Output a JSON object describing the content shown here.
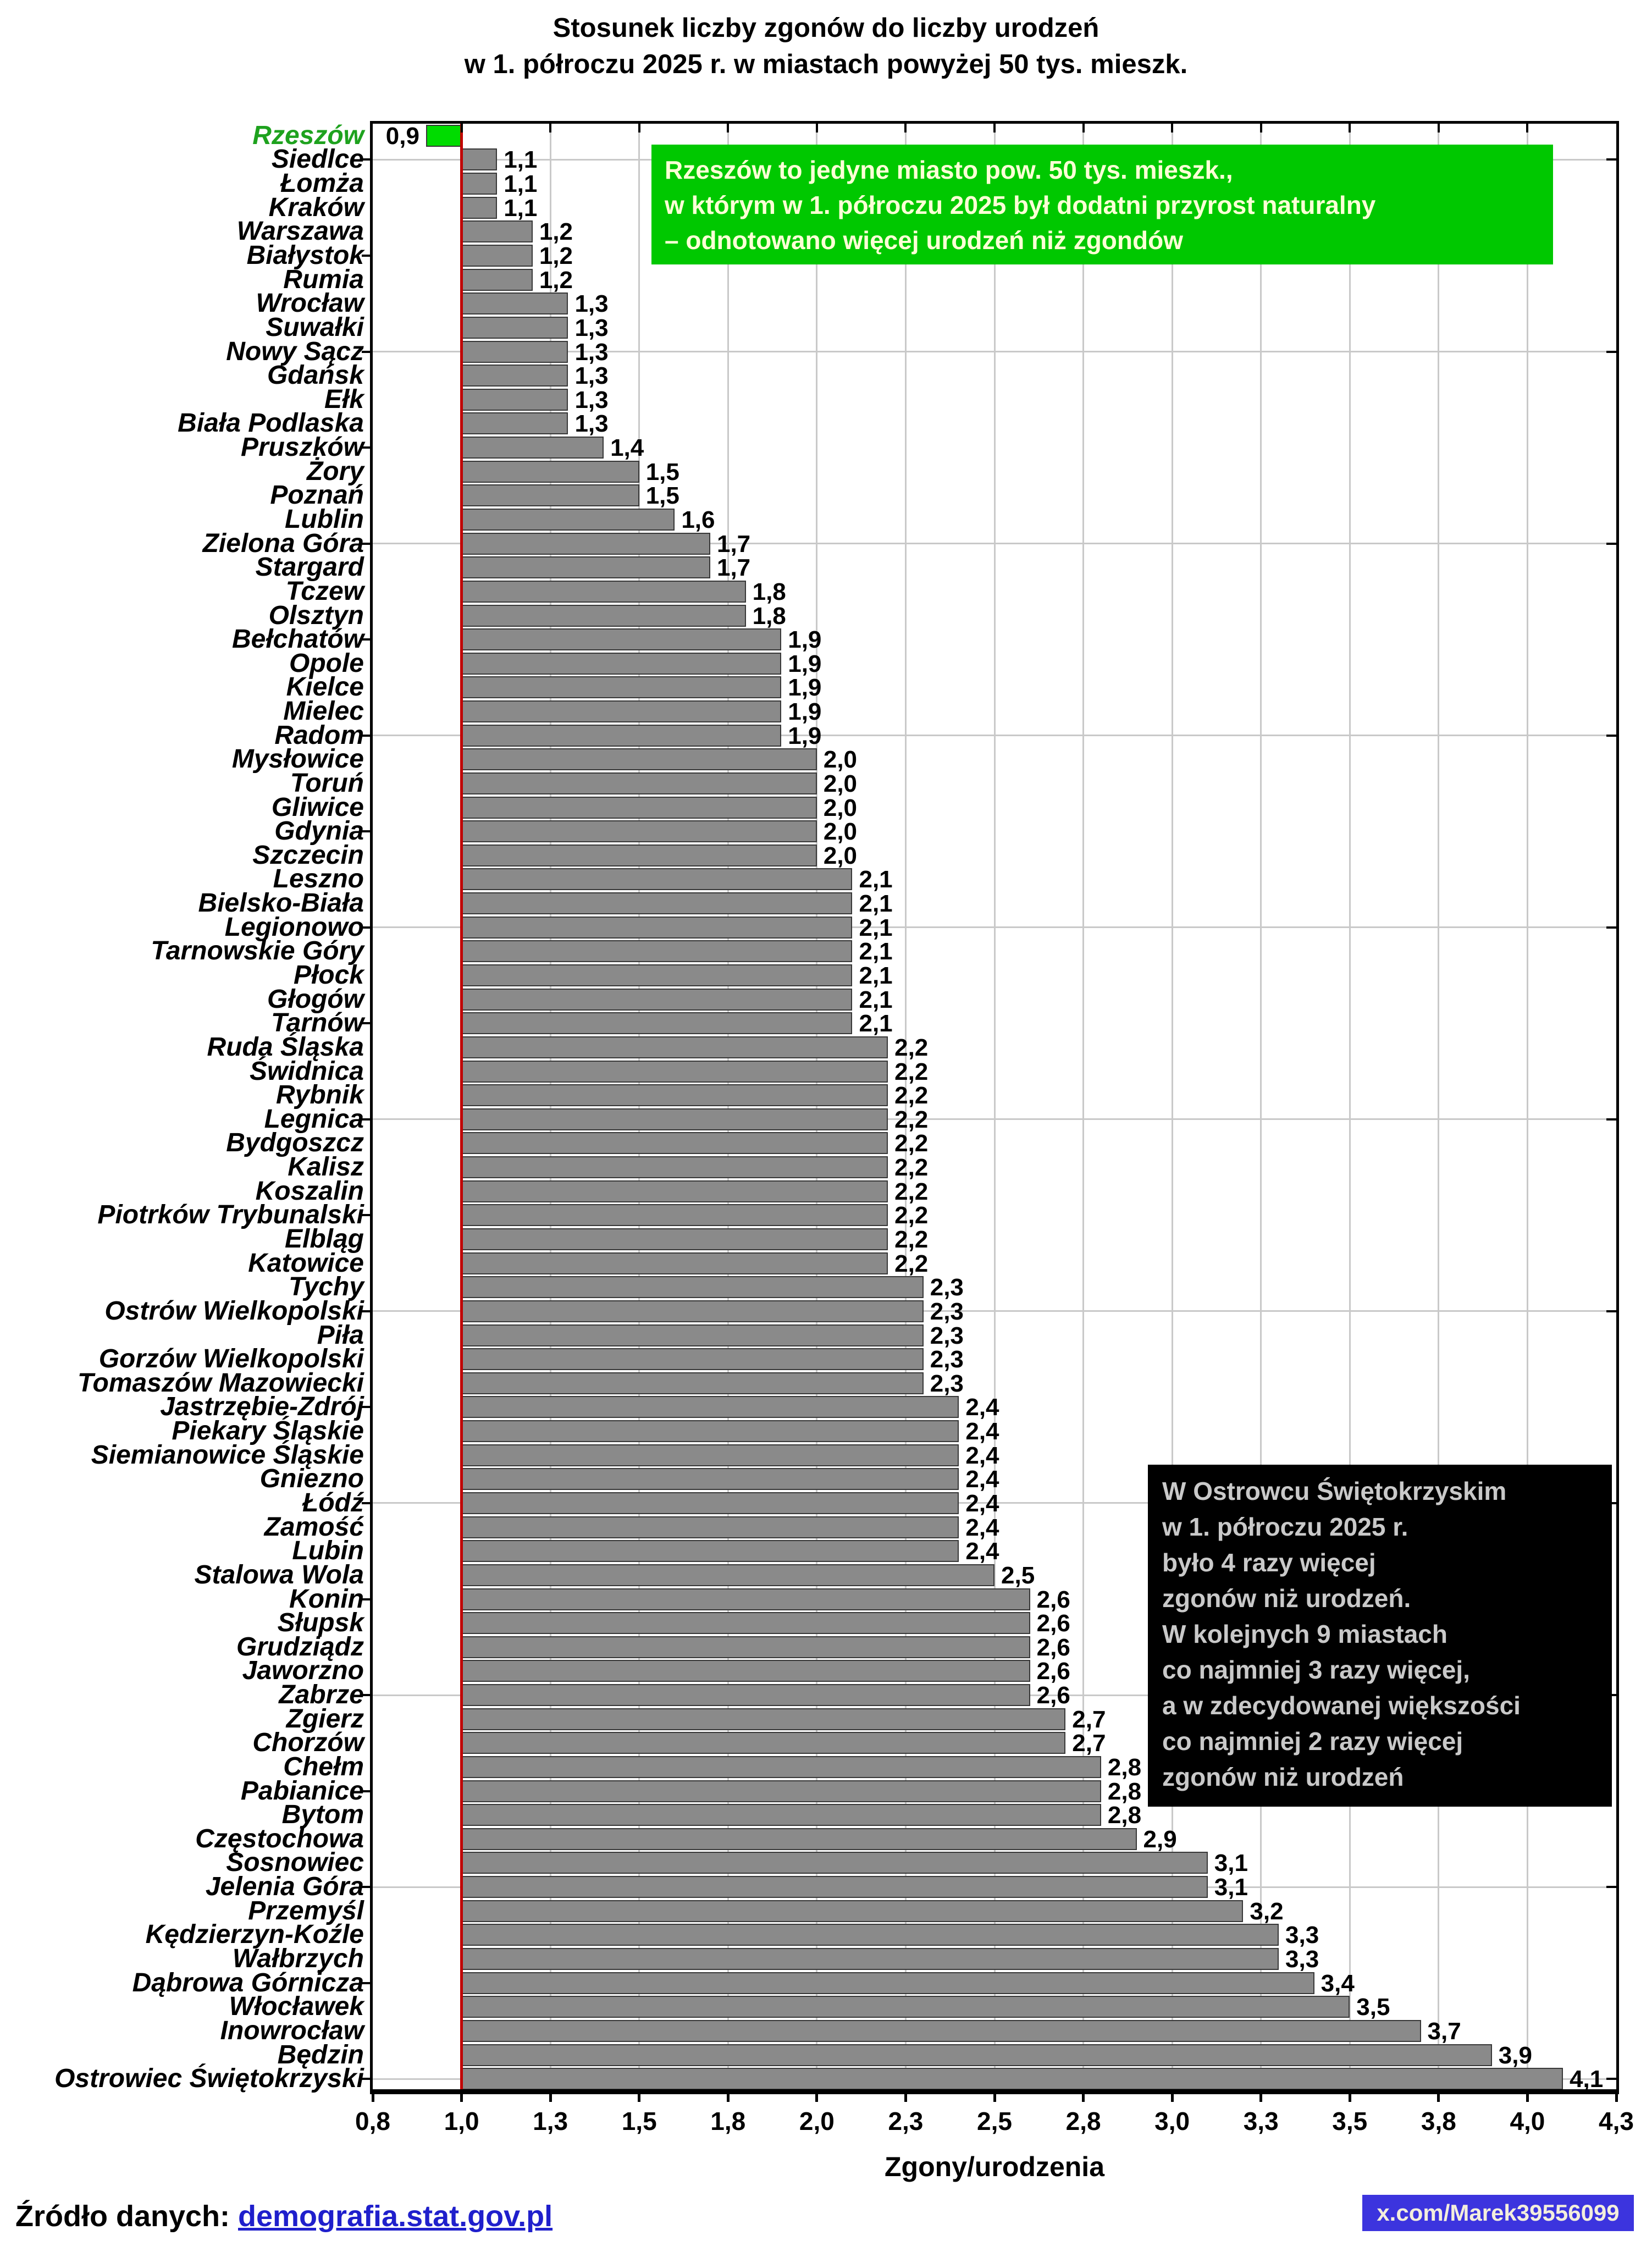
{
  "chart_data": {
    "type": "bar",
    "orientation": "horizontal",
    "title_lines": [
      "Stosunek liczby zgonów do liczby urodzeń",
      "w 1. półroczu 2025 r. w miastach powyżej 50 tys. mieszk."
    ],
    "xlabel": "Zgony/urodzenia",
    "xlim": [
      0.75,
      4.25
    ],
    "baseline": 1.0,
    "grid": true,
    "x_ticks": [
      {
        "value": 0.75,
        "label": "0,8"
      },
      {
        "value": 1.0,
        "label": "1,0"
      },
      {
        "value": 1.25,
        "label": "1,3"
      },
      {
        "value": 1.5,
        "label": "1,5"
      },
      {
        "value": 1.75,
        "label": "1,8"
      },
      {
        "value": 2.0,
        "label": "2,0"
      },
      {
        "value": 2.25,
        "label": "2,3"
      },
      {
        "value": 2.5,
        "label": "2,5"
      },
      {
        "value": 2.75,
        "label": "2,8"
      },
      {
        "value": 3.0,
        "label": "3,0"
      },
      {
        "value": 3.25,
        "label": "3,3"
      },
      {
        "value": 3.5,
        "label": "3,5"
      },
      {
        "value": 3.75,
        "label": "3,8"
      },
      {
        "value": 4.0,
        "label": "4,0"
      },
      {
        "value": 4.25,
        "label": "4,3"
      }
    ],
    "highlight_city": "Rzeszów",
    "categories": [
      "Rzeszów",
      "Siedlce",
      "Łomża",
      "Kraków",
      "Warszawa",
      "Białystok",
      "Rumia",
      "Wrocław",
      "Suwałki",
      "Nowy Sącz",
      "Gdańsk",
      "Ełk",
      "Biała Podlaska",
      "Pruszków",
      "Żory",
      "Poznań",
      "Lublin",
      "Zielona Góra",
      "Stargard",
      "Tczew",
      "Olsztyn",
      "Bełchatów",
      "Opole",
      "Kielce",
      "Mielec",
      "Radom",
      "Mysłowice",
      "Toruń",
      "Gliwice",
      "Gdynia",
      "Szczecin",
      "Leszno",
      "Bielsko-Biała",
      "Legionowo",
      "Tarnowskie Góry",
      "Płock",
      "Głogów",
      "Tarnów",
      "Ruda Śląska",
      "Świdnica",
      "Rybnik",
      "Legnica",
      "Bydgoszcz",
      "Kalisz",
      "Koszalin",
      "Piotrków Trybunalski",
      "Elbląg",
      "Katowice",
      "Tychy",
      "Ostrów Wielkopolski",
      "Piła",
      "Gorzów Wielkopolski",
      "Tomaszów Mazowiecki",
      "Jastrzębie-Zdrój",
      "Piekary Śląskie",
      "Siemianowice Śląskie",
      "Gniezno",
      "Łódź",
      "Zamość",
      "Lubin",
      "Stalowa Wola",
      "Konin",
      "Słupsk",
      "Grudziądz",
      "Jaworzno",
      "Zabrze",
      "Zgierz",
      "Chorzów",
      "Chełm",
      "Pabianice",
      "Bytom",
      "Częstochowa",
      "Sosnowiec",
      "Jelenia Góra",
      "Przemyśl",
      "Kędzierzyn-Koźle",
      "Wałbrzych",
      "Dąbrowa Górnicza",
      "Włocławek",
      "Inowrocław",
      "Będzin",
      "Ostrowiec Świętokrzyski"
    ],
    "values": [
      0.9,
      1.1,
      1.1,
      1.1,
      1.2,
      1.2,
      1.2,
      1.3,
      1.3,
      1.3,
      1.3,
      1.3,
      1.3,
      1.4,
      1.5,
      1.5,
      1.6,
      1.7,
      1.7,
      1.8,
      1.8,
      1.9,
      1.9,
      1.9,
      1.9,
      1.9,
      2.0,
      2.0,
      2.0,
      2.0,
      2.0,
      2.1,
      2.1,
      2.1,
      2.1,
      2.1,
      2.1,
      2.1,
      2.2,
      2.2,
      2.2,
      2.2,
      2.2,
      2.2,
      2.2,
      2.2,
      2.2,
      2.2,
      2.3,
      2.3,
      2.3,
      2.3,
      2.3,
      2.4,
      2.4,
      2.4,
      2.4,
      2.4,
      2.4,
      2.4,
      2.5,
      2.6,
      2.6,
      2.6,
      2.6,
      2.6,
      2.7,
      2.7,
      2.8,
      2.8,
      2.8,
      2.9,
      3.1,
      3.1,
      3.2,
      3.3,
      3.3,
      3.4,
      3.5,
      3.7,
      3.9,
      4.1
    ]
  },
  "annotations": {
    "green_note": {
      "lines": [
        "Rzeszów to jedyne miasto pow. 50 tys. mieszk.,",
        "w którym w 1. półroczu 2025 był dodatni przyrost naturalny",
        "– odnotowano więcej urodzeń niż zgondów"
      ]
    },
    "black_note": {
      "lines": [
        "W Ostrowcu Świętokrzyskim",
        "w 1. półroczu 2025 r.",
        "było 4 razy więcej",
        "zgonów niż urodzeń.",
        "W kolejnych 9 miastach",
        "co najmniej 3 razy więcej,",
        "a w zdecydowanej większości",
        "co najmniej 2 razy więcej",
        "zgonów niż urodzeń"
      ]
    }
  },
  "footer": {
    "source_prefix": "Źródło danych: ",
    "source_link": "demografia.stat.gov.pl",
    "handle": "x.com/Marek39556099"
  },
  "colors": {
    "bar_gray": "#8A8A8A",
    "bar_border": "#383838",
    "bar_green": "#00DC00",
    "city_green": "#1EA21E",
    "baseline_red": "#C00000",
    "grid_gray": "#C9C9C9",
    "green_box_bg": "#00C800",
    "green_box_text": "#FFFFD6",
    "black_box_bg": "#000000",
    "black_box_text": "#C9C9C9",
    "link_blue": "#1F1FCC",
    "handle_bg": "#3C34DE",
    "handle_text": "#F3EEDC"
  }
}
